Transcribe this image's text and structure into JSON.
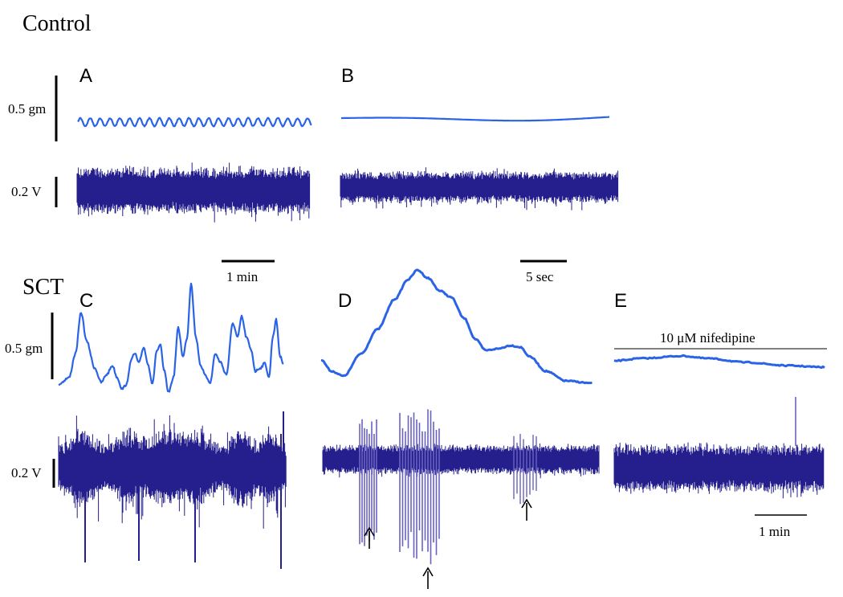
{
  "conditions": {
    "control": "Control",
    "sct": "SCT"
  },
  "panels": {
    "a": "A",
    "b": "B",
    "c": "C",
    "d": "D",
    "e": "E"
  },
  "scale_labels": {
    "force": "0.5 gm",
    "voltage": "0.2 V",
    "time_min": "1 min",
    "time_sec": "5 sec",
    "time_min_e": "1 min"
  },
  "drug_label": "10 μM nifedipine",
  "colors": {
    "force_trace": "#2a63e6",
    "emg_trace": "#241f8c",
    "emg_spike": "#6a62c0",
    "scale_bar": "#000000"
  }
}
